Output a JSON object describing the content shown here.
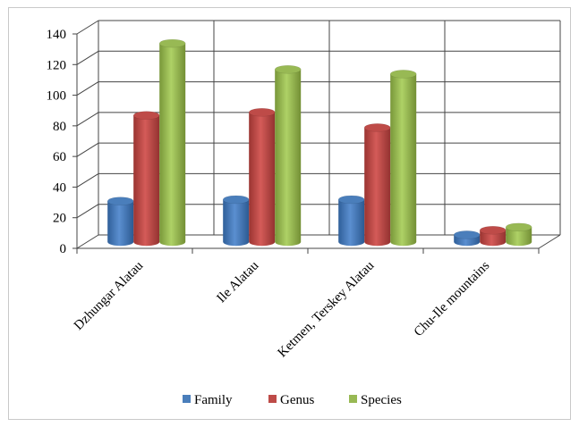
{
  "chart_data": {
    "type": "bar",
    "title": "",
    "xlabel": "",
    "ylabel": "",
    "ylim": [
      0,
      140
    ],
    "yticks": [
      0,
      20,
      40,
      60,
      80,
      100,
      120,
      140
    ],
    "categories": [
      "Dzhungar Alatau",
      "Ile Alatau",
      "Ketmen, Terskey Alatau",
      "Chu-Ile mountains"
    ],
    "series": [
      {
        "name": "Family",
        "color": "#4a7ebb",
        "values": [
          26,
          27,
          27,
          4
        ]
      },
      {
        "name": "Genus",
        "color": "#be4b48",
        "values": [
          82,
          84,
          74,
          7
        ]
      },
      {
        "name": "Species",
        "color": "#98b954",
        "values": [
          129,
          112,
          109,
          9
        ]
      }
    ],
    "grid": true,
    "style": "3d-cylinder",
    "legend_position": "bottom"
  }
}
